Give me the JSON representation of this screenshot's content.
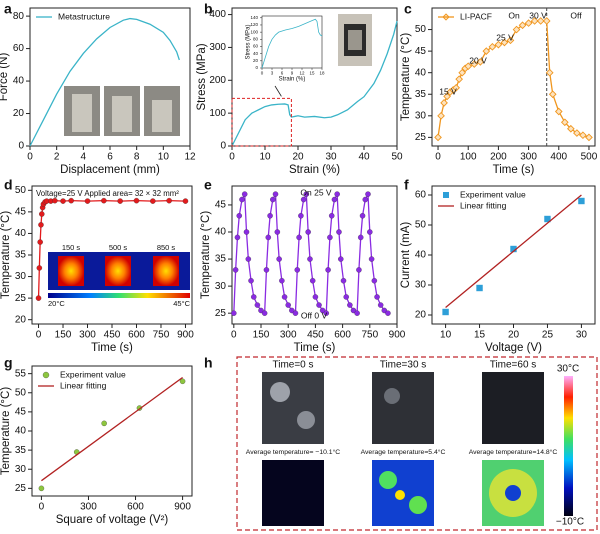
{
  "panels": [
    "a",
    "b",
    "c",
    "d",
    "e",
    "f",
    "g",
    "h"
  ],
  "chart_data": [
    {
      "type": "line",
      "xlabel": "Displacement (mm)",
      "ylabel": "Force (N)",
      "xlim": [
        0,
        12
      ],
      "xticks": [
        0,
        2,
        4,
        6,
        8,
        10,
        12
      ],
      "ylim": [
        0,
        85
      ],
      "yticks": [
        0,
        20,
        40,
        60,
        80
      ],
      "legend": "upper left",
      "series": [
        {
          "name": "Metastructure",
          "color": "#3ab4c8",
          "x": [
            0,
            0.5,
            1,
            2,
            3,
            4,
            5,
            6,
            7,
            7.5,
            8,
            9,
            10,
            10.5,
            11,
            11.2
          ],
          "values": [
            0,
            8,
            16,
            32,
            46,
            57,
            66,
            73,
            77.5,
            78.5,
            78,
            75,
            70,
            65,
            58,
            53
          ]
        }
      ]
    },
    {
      "type": "line",
      "xlabel": "Strain (%)",
      "ylabel": "Stress (MPa)",
      "xlim": [
        0,
        50
      ],
      "xticks": [
        0,
        10,
        20,
        30,
        40,
        50
      ],
      "ylim": [
        0,
        420
      ],
      "yticks": [
        0,
        100,
        200,
        300,
        400
      ],
      "series": [
        {
          "color": "#3ab4c8",
          "x": [
            0,
            2,
            4,
            6,
            8,
            10,
            12,
            14,
            16,
            17,
            17.5,
            18,
            19,
            20,
            22,
            25,
            28,
            30,
            32,
            35,
            38,
            40,
            43,
            45,
            47,
            49,
            50
          ],
          "values": [
            0,
            40,
            80,
            100,
            110,
            120,
            125,
            127,
            128,
            125,
            95,
            88,
            90,
            92,
            88,
            90,
            86,
            88,
            95,
            110,
            135,
            150,
            190,
            230,
            280,
            340,
            380
          ]
        }
      ]
    },
    {
      "type": "line",
      "xlabel": "Strain (%)",
      "ylabel": "Stress (MPa)",
      "xlim": [
        0,
        18
      ],
      "xticks": [
        0,
        3,
        6,
        9,
        12,
        15,
        18
      ],
      "ylim": [
        0,
        145
      ],
      "yticks": [
        0,
        20,
        40,
        60,
        80,
        100,
        120,
        140
      ],
      "series": [
        {
          "color": "#3ab4c8",
          "x": [
            0,
            1,
            2,
            3,
            4,
            5,
            7,
            9,
            11,
            13,
            15,
            16,
            16.5,
            17,
            17.5,
            18
          ],
          "values": [
            0,
            30,
            60,
            80,
            92,
            100,
            106,
            110,
            116,
            124,
            132,
            136,
            130,
            100,
            92,
            90
          ]
        }
      ]
    },
    {
      "type": "line",
      "xlabel": "Time (s)",
      "ylabel": "Temperature (°C)",
      "xlim": [
        -20,
        520
      ],
      "xticks": [
        0,
        100,
        200,
        300,
        400,
        500
      ],
      "ylim": [
        23,
        55
      ],
      "yticks": [
        25,
        30,
        35,
        40,
        45,
        50
      ],
      "legend": "upper left",
      "vline": 360,
      "annotations": [
        "15 V",
        "20 V",
        "25 V",
        "30 V",
        "On",
        "Off"
      ],
      "series": [
        {
          "name": "LI-PACF",
          "color": "#f0961e",
          "marker": "diamond",
          "x": [
            0,
            10,
            20,
            30,
            40,
            50,
            60,
            70,
            80,
            90,
            100,
            120,
            140,
            160,
            180,
            200,
            220,
            240,
            260,
            280,
            300,
            320,
            340,
            360,
            370,
            380,
            400,
            420,
            440,
            460,
            480,
            500
          ],
          "values": [
            25,
            30,
            33,
            34.5,
            35.5,
            36,
            36.5,
            38.5,
            40,
            41,
            41.5,
            42,
            42.5,
            45,
            46,
            46.5,
            47,
            47.5,
            50,
            51,
            51.5,
            52,
            52,
            52,
            40,
            35,
            31,
            28.5,
            27,
            26,
            25.5,
            25
          ]
        }
      ]
    },
    {
      "type": "line",
      "xlabel": "Time (s)",
      "ylabel": "Temperature (°C)",
      "xlim": [
        -40,
        940
      ],
      "xticks": [
        0,
        150,
        300,
        450,
        600,
        750,
        900
      ],
      "ylim": [
        19,
        51
      ],
      "yticks": [
        20,
        25,
        30,
        35,
        40,
        45,
        50
      ],
      "annotations": [
        "Voltage=25 V Applied area= 32 × 32 mm²"
      ],
      "inset_labels": [
        "150 s",
        "500 s",
        "850 s"
      ],
      "colorbar": [
        "20°C",
        "45°C"
      ],
      "series": [
        {
          "color": "#e31a1c",
          "marker": "circle",
          "x": [
            0,
            5,
            10,
            15,
            20,
            25,
            30,
            40,
            50,
            75,
            100,
            150,
            200,
            300,
            400,
            500,
            600,
            700,
            800,
            900
          ],
          "values": [
            25,
            32,
            38,
            42,
            44.5,
            46,
            46.8,
            47.3,
            47.5,
            47.5,
            47.6,
            47.5,
            47.6,
            47.5,
            47.6,
            47.5,
            47.6,
            47.5,
            47.6,
            47.5
          ]
        }
      ]
    },
    {
      "type": "line",
      "xlabel": "Time (s)",
      "ylabel": "Temperature (°C)",
      "xlim": [
        -10,
        900
      ],
      "xticks": [
        0,
        150,
        300,
        450,
        600,
        750,
        900
      ],
      "ylim": [
        23,
        48.5
      ],
      "yticks": [
        25,
        30,
        35,
        40,
        45
      ],
      "annotations": [
        "On 25 V",
        "Off 0 V"
      ],
      "series": [
        {
          "color": "#8a2be2",
          "marker": "circle",
          "x": [
            0,
            10,
            20,
            30,
            45,
            60,
            70,
            80,
            95,
            110,
            130,
            150,
            170,
            180,
            190,
            200,
            215,
            230,
            240,
            250,
            265,
            280,
            300,
            320,
            340,
            350,
            360,
            370,
            385,
            400,
            410,
            420,
            435,
            450,
            470,
            490,
            510,
            520,
            530,
            540,
            555,
            570,
            580,
            590,
            605,
            620,
            640,
            660,
            680,
            690,
            700,
            710,
            725,
            740,
            750,
            760,
            775,
            790,
            810,
            830,
            850
          ],
          "values": [
            25,
            33,
            39,
            43,
            46,
            47,
            40,
            35,
            31,
            28,
            26.5,
            25.5,
            25,
            33,
            39,
            43,
            46,
            47,
            40,
            35,
            31,
            28,
            26.5,
            25.5,
            25,
            33,
            39,
            43,
            46,
            47,
            40,
            35,
            31,
            28,
            26.5,
            25.5,
            25,
            33,
            39,
            43,
            46,
            47,
            40,
            35,
            31,
            28,
            26.5,
            25.5,
            25,
            33,
            39,
            43,
            46,
            47,
            40,
            35,
            31,
            28,
            26.5,
            25.5,
            25
          ]
        }
      ]
    },
    {
      "type": "scatter",
      "xlabel": "Voltage (V)",
      "ylabel": "Current (mA)",
      "xlim": [
        8,
        32
      ],
      "xticks": [
        10,
        15,
        20,
        25,
        30
      ],
      "ylim": [
        17,
        63
      ],
      "yticks": [
        20,
        30,
        40,
        50,
        60
      ],
      "legend": "upper left",
      "series": [
        {
          "name": "Experiment value",
          "color": "#2e9fd8",
          "marker": "square",
          "x": [
            10,
            15,
            20,
            25,
            30
          ],
          "values": [
            21,
            29,
            42,
            52,
            58
          ]
        },
        {
          "name": "Linear fitting",
          "color": "#b22222",
          "type": "line",
          "x": [
            10,
            30
          ],
          "values": [
            22.5,
            60
          ]
        }
      ]
    },
    {
      "type": "scatter",
      "xlabel": "Square of voltage (V²)",
      "ylabel": "Temperature (°C)",
      "xlim": [
        -60,
        960
      ],
      "xticks": [
        0,
        300,
        600,
        900
      ],
      "ylim": [
        23,
        57
      ],
      "yticks": [
        25,
        30,
        35,
        40,
        45,
        50,
        55
      ],
      "legend": "upper left",
      "series": [
        {
          "name": "Experiment value",
          "color": "#8dc63f",
          "marker": "circle",
          "x": [
            0,
            225,
            400,
            625,
            900
          ],
          "values": [
            25,
            34.5,
            42,
            46,
            53
          ]
        },
        {
          "name": "Linear fitting",
          "color": "#b22222",
          "type": "line",
          "x": [
            0,
            900
          ],
          "values": [
            27,
            54
          ]
        }
      ]
    }
  ],
  "thermal": {
    "times": [
      "Time=0 s",
      "Time=30 s",
      "Time=60 s"
    ],
    "averages": [
      "Average temperature= −10.1°C",
      "Average temperature=5.4°C",
      "Average temperature=14.8°C"
    ],
    "colorbar": [
      "30°C",
      "−10°C"
    ]
  }
}
